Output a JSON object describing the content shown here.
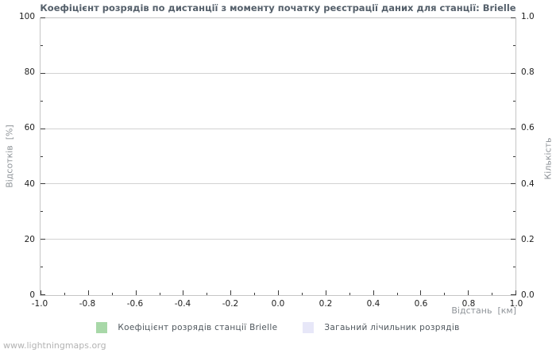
{
  "chart": {
    "title": "Коефіцієнт розрядів по дистанції з моменту початку реєстрації даних для станції: Brielle",
    "ylabel_left": "Відсотків  [%]",
    "ylabel_right": "Кількість",
    "xlabel": "Відстань  [км]"
  },
  "chart_data": {
    "type": "line",
    "title": "Коефіцієнт розрядів по дистанції з моменту початку реєстрації даних для станції: Brielle",
    "xlabel": "Відстань [км]",
    "ylabel_left": "Відсотків [%]",
    "ylabel_right": "Кількість",
    "xlim": [
      -1.0,
      1.0
    ],
    "ylim_left": [
      0,
      100
    ],
    "ylim_right": [
      0.0,
      1.0
    ],
    "x_ticks": [
      "-1.0",
      "-0.8",
      "-0.6",
      "-0.4",
      "-0.2",
      "0.0",
      "0.2",
      "0.4",
      "0.6",
      "0.8",
      "1.0"
    ],
    "y_ticks_left": [
      "0",
      "20",
      "40",
      "60",
      "80",
      "100"
    ],
    "y_ticks_right": [
      "0.0",
      "0.2",
      "0.4",
      "0.6",
      "0.8",
      "1.0"
    ],
    "grid": "horizontal-major-only",
    "legend_position": "bottom-center",
    "series": [
      {
        "name": "Коефіцієнт розрядів станції Brielle",
        "color": "#a8d8a8",
        "x": [],
        "values": []
      },
      {
        "name": "Загаьний лічильник розрядів",
        "color": "#e7e7f8",
        "x": [],
        "values": []
      }
    ],
    "note": "empty plot — no data points drawn"
  },
  "legend": {
    "items": [
      {
        "label": "Коефіцієнт розрядів станції Brielle",
        "color": "#a8d8a8"
      },
      {
        "label": "Загаьний лічильник розрядів",
        "color": "#e7e7f8"
      }
    ]
  },
  "footer": {
    "watermark": "www.lightningmaps.org"
  },
  "colors": {
    "title": "#55606b",
    "tick_label": "#1f1f1f",
    "axis_label": "#8f9499",
    "gridline": "#d2d2d2",
    "frame": "#c5c5c5",
    "watermark": "#b3b3b3"
  }
}
